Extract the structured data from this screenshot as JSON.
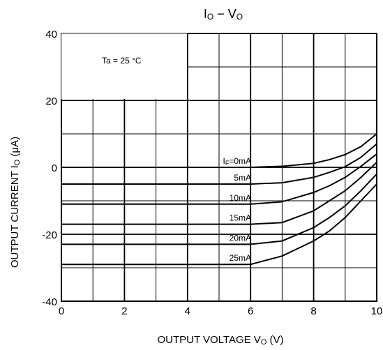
{
  "chart_data": {
    "type": "line",
    "title": "I O − V O",
    "title_parts": {
      "sym": "I",
      "sub": "O",
      "dash": " − ",
      "sym2": "V",
      "sub2": "O"
    },
    "ylabel": "OUTPUT CURRENT   I O (μA)",
    "ylabel_parts": {
      "main": "OUTPUT CURRENT",
      "sym": "I",
      "sub": "O",
      "unit": " (μA)"
    },
    "xlabel": "OUTPUT VOLTAGE   VO (V)",
    "xlabel_parts": {
      "main": "OUTPUT VOLTAGE",
      "sym": "V",
      "sub": "O",
      "unit": " (V)"
    },
    "xlim": [
      0,
      10
    ],
    "ylim": [
      -40,
      40
    ],
    "xticks": [
      0,
      2,
      4,
      6,
      8,
      10
    ],
    "yticks": [
      40,
      20,
      0,
      -20,
      -40
    ],
    "grid": true,
    "annotation": "Ta = 25 °C",
    "series_label_parts": {
      "sym": "I",
      "sub": "F",
      "rest": "=0mA"
    },
    "series": [
      {
        "name": "IF=0mA",
        "label": "IF=0mA",
        "x": [
          0,
          6,
          7,
          8,
          8.5,
          9,
          9.5,
          10
        ],
        "y": [
          0,
          0,
          0.3,
          1.2,
          2.3,
          3.8,
          6.2,
          10
        ]
      },
      {
        "name": "5mA",
        "label": "5mA",
        "x": [
          0,
          6,
          7,
          8,
          8.5,
          9,
          9.5,
          10
        ],
        "y": [
          -5,
          -5,
          -4.6,
          -3,
          -1.5,
          0.2,
          3,
          7
        ]
      },
      {
        "name": "10mA",
        "label": "10mA",
        "x": [
          0,
          6,
          7,
          8,
          8.5,
          9,
          9.5,
          10
        ],
        "y": [
          -11,
          -11,
          -10.3,
          -7.5,
          -5.5,
          -3,
          0.3,
          4
        ]
      },
      {
        "name": "15mA",
        "label": "15mA",
        "x": [
          0,
          6,
          7,
          8,
          8.5,
          9,
          9.5,
          10
        ],
        "y": [
          -17,
          -17,
          -16.5,
          -13,
          -10,
          -7,
          -3,
          1.5
        ]
      },
      {
        "name": "20mA",
        "label": "20mA",
        "x": [
          0,
          6,
          7,
          8,
          8.5,
          9,
          9.5,
          10
        ],
        "y": [
          -23,
          -23,
          -22,
          -18,
          -15,
          -11.5,
          -7,
          -2
        ]
      },
      {
        "name": "25mA",
        "label": "25mA",
        "x": [
          0,
          6,
          7,
          8,
          8.5,
          9,
          9.5,
          10
        ],
        "y": [
          -29,
          -29,
          -26.5,
          -22,
          -19,
          -15,
          -10,
          -5
        ]
      }
    ]
  }
}
